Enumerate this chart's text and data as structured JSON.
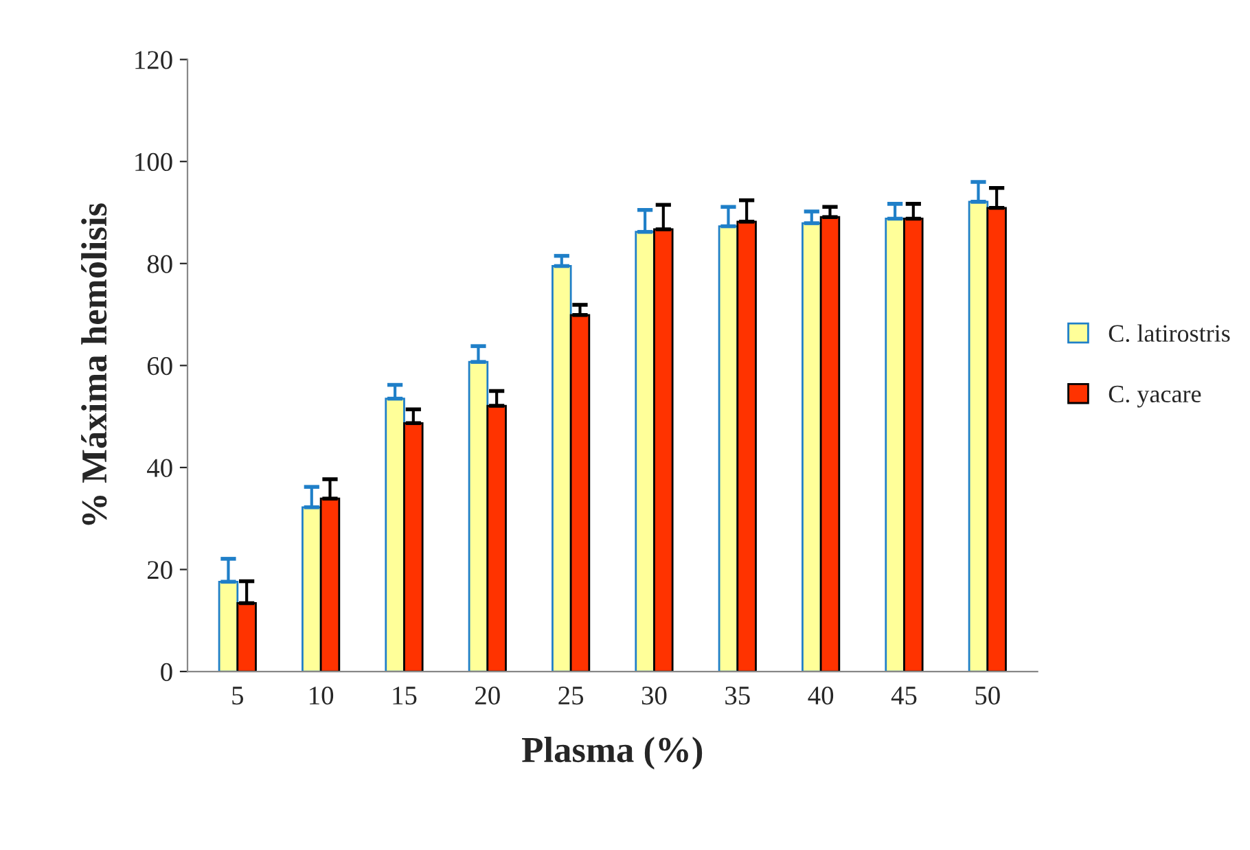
{
  "chart_data": {
    "type": "bar",
    "xlabel": "Plasma (%)",
    "ylabel": "% Máxima hemólisis",
    "categories": [
      "5",
      "10",
      "15",
      "20",
      "25",
      "30",
      "35",
      "40",
      "45",
      "50"
    ],
    "series": [
      {
        "name": "C. latirostris",
        "color": "#ffff99",
        "values": [
          17.6,
          32.2,
          53.5,
          60.7,
          79.5,
          86.2,
          87.3,
          87.9,
          88.8,
          92.1
        ],
        "errors": [
          [
            17.6,
            22.1
          ],
          [
            32.2,
            36.2
          ],
          [
            53.5,
            56.2
          ],
          [
            60.7,
            63.8
          ],
          [
            79.5,
            81.5
          ],
          [
            86.2,
            90.5
          ],
          [
            87.3,
            91.1
          ],
          [
            87.9,
            90.2
          ],
          [
            88.8,
            91.7
          ],
          [
            92.1,
            96.0
          ]
        ]
      },
      {
        "name": "C. yacare",
        "color": "#ff3300",
        "values": [
          13.4,
          33.9,
          48.7,
          52.1,
          69.9,
          86.7,
          88.2,
          89.1,
          88.8,
          90.9
        ],
        "errors": [
          [
            13.4,
            17.7
          ],
          [
            33.9,
            37.7
          ],
          [
            48.7,
            51.4
          ],
          [
            52.1,
            55.0
          ],
          [
            69.9,
            71.9
          ],
          [
            86.7,
            91.5
          ],
          [
            88.2,
            92.4
          ],
          [
            89.1,
            91.1
          ],
          [
            88.8,
            91.7
          ],
          [
            90.9,
            94.8
          ]
        ]
      }
    ],
    "ylim": [
      0,
      120
    ],
    "yticks": [
      0,
      20,
      40,
      60,
      80,
      100,
      120
    ],
    "grid": false,
    "legend": "right"
  }
}
